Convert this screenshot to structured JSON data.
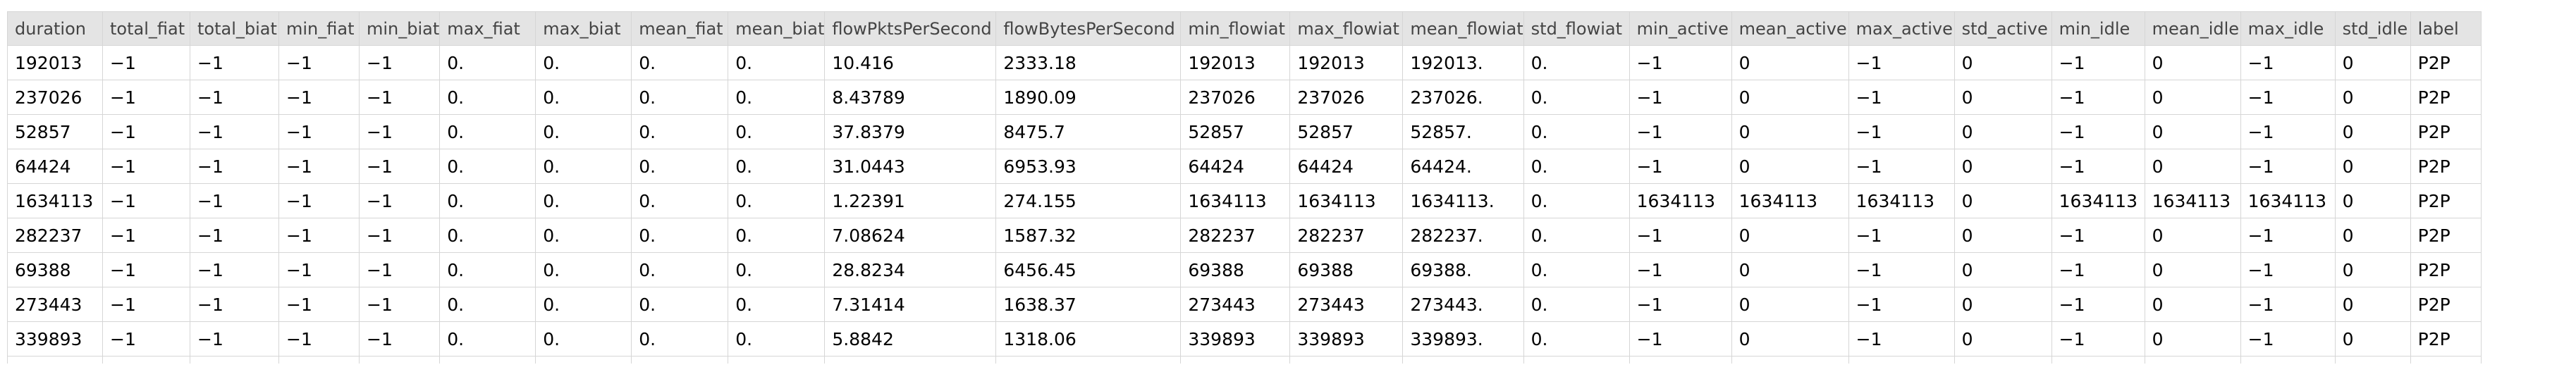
{
  "table": {
    "columns": [
      "duration",
      "total_fiat",
      "total_biat",
      "min_fiat",
      "min_biat",
      "max_fiat",
      "max_biat",
      "mean_fiat",
      "mean_biat",
      "flowPktsPerSecond",
      "flowBytesPerSecond",
      "min_flowiat",
      "max_flowiat",
      "mean_flowiat",
      "std_flowiat",
      "min_active",
      "mean_active",
      "max_active",
      "std_active",
      "min_idle",
      "mean_idle",
      "max_idle",
      "std_idle",
      "label"
    ],
    "rows": [
      [
        "192013",
        "−1",
        "−1",
        "−1",
        "−1",
        "0.",
        "0.",
        "0.",
        "0.",
        "10.416",
        "2333.18",
        "192013",
        "192013",
        "192013.",
        "0.",
        "−1",
        "0",
        "−1",
        "0",
        "−1",
        "0",
        "−1",
        "0",
        "P2P"
      ],
      [
        "237026",
        "−1",
        "−1",
        "−1",
        "−1",
        "0.",
        "0.",
        "0.",
        "0.",
        "8.43789",
        "1890.09",
        "237026",
        "237026",
        "237026.",
        "0.",
        "−1",
        "0",
        "−1",
        "0",
        "−1",
        "0",
        "−1",
        "0",
        "P2P"
      ],
      [
        "52857",
        "−1",
        "−1",
        "−1",
        "−1",
        "0.",
        "0.",
        "0.",
        "0.",
        "37.8379",
        "8475.7",
        "52857",
        "52857",
        "52857.",
        "0.",
        "−1",
        "0",
        "−1",
        "0",
        "−1",
        "0",
        "−1",
        "0",
        "P2P"
      ],
      [
        "64424",
        "−1",
        "−1",
        "−1",
        "−1",
        "0.",
        "0.",
        "0.",
        "0.",
        "31.0443",
        "6953.93",
        "64424",
        "64424",
        "64424.",
        "0.",
        "−1",
        "0",
        "−1",
        "0",
        "−1",
        "0",
        "−1",
        "0",
        "P2P"
      ],
      [
        "1634113",
        "−1",
        "−1",
        "−1",
        "−1",
        "0.",
        "0.",
        "0.",
        "0.",
        "1.22391",
        "274.155",
        "1634113",
        "1634113",
        "1634113.",
        "0.",
        "1634113",
        "1634113",
        "1634113",
        "0",
        "1634113",
        "1634113",
        "1634113",
        "0",
        "P2P"
      ],
      [
        "282237",
        "−1",
        "−1",
        "−1",
        "−1",
        "0.",
        "0.",
        "0.",
        "0.",
        "7.08624",
        "1587.32",
        "282237",
        "282237",
        "282237.",
        "0.",
        "−1",
        "0",
        "−1",
        "0",
        "−1",
        "0",
        "−1",
        "0",
        "P2P"
      ],
      [
        "69388",
        "−1",
        "−1",
        "−1",
        "−1",
        "0.",
        "0.",
        "0.",
        "0.",
        "28.8234",
        "6456.45",
        "69388",
        "69388",
        "69388.",
        "0.",
        "−1",
        "0",
        "−1",
        "0",
        "−1",
        "0",
        "−1",
        "0",
        "P2P"
      ],
      [
        "273443",
        "−1",
        "−1",
        "−1",
        "−1",
        "0.",
        "0.",
        "0.",
        "0.",
        "7.31414",
        "1638.37",
        "273443",
        "273443",
        "273443.",
        "0.",
        "−1",
        "0",
        "−1",
        "0",
        "−1",
        "0",
        "−1",
        "0",
        "P2P"
      ],
      [
        "339893",
        "−1",
        "−1",
        "−1",
        "−1",
        "0.",
        "0.",
        "0.",
        "0.",
        "5.8842",
        "1318.06",
        "339893",
        "339893",
        "339893.",
        "0.",
        "−1",
        "0",
        "−1",
        "0",
        "−1",
        "0",
        "−1",
        "0",
        "P2P"
      ]
    ]
  }
}
